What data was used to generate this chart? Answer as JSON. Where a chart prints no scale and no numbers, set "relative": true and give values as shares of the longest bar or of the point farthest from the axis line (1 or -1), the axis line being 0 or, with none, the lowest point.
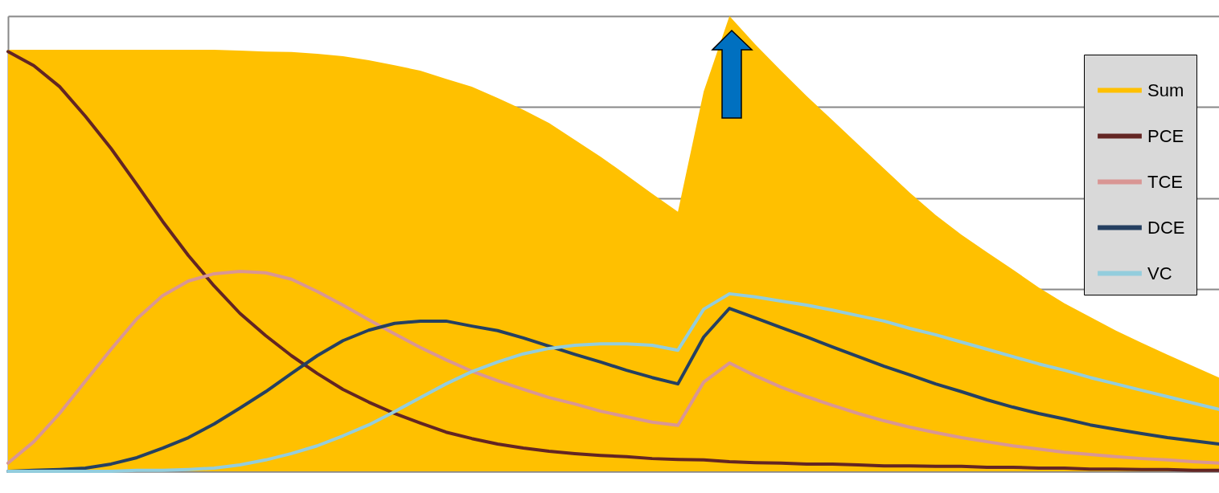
{
  "chart_data": {
    "type": "line",
    "relative": true,
    "grid": "y",
    "legend": "top right",
    "categories": [
      null,
      null,
      null,
      null,
      null,
      null,
      null,
      null,
      null,
      null,
      null,
      null,
      null,
      null,
      null,
      null,
      null,
      null,
      null,
      null,
      null,
      null,
      null,
      null,
      null,
      null,
      null,
      null,
      null,
      null,
      null,
      null,
      null,
      null,
      null,
      null,
      null,
      null,
      null,
      null,
      null,
      null,
      null,
      null,
      null,
      null,
      null,
      null
    ],
    "series": [
      {
        "name": "Sum",
        "type": "area",
        "color": "#ffc000",
        "values": [
          0.926,
          0.926,
          0.926,
          0.926,
          0.926,
          0.926,
          0.926,
          0.926,
          0.926,
          0.924,
          0.922,
          0.921,
          0.917,
          0.912,
          0.903,
          0.892,
          0.88,
          0.862,
          0.845,
          0.82,
          0.794,
          0.765,
          0.728,
          0.691,
          0.651,
          0.61,
          0.57,
          0.834,
          1.0,
          0.938,
          0.88,
          0.824,
          0.771,
          0.718,
          0.665,
          0.612,
          0.563,
          0.52,
          0.481,
          0.443,
          0.404,
          0.369,
          0.339,
          0.309,
          0.282,
          0.256,
          0.231,
          0.206
        ]
      },
      {
        "name": "PCE",
        "type": "line",
        "color": "#632523",
        "values": [
          0.922,
          0.891,
          0.845,
          0.78,
          0.709,
          0.63,
          0.549,
          0.474,
          0.407,
          0.347,
          0.298,
          0.254,
          0.215,
          0.18,
          0.152,
          0.127,
          0.106,
          0.086,
          0.072,
          0.06,
          0.051,
          0.044,
          0.039,
          0.035,
          0.032,
          0.028,
          0.026,
          0.025,
          0.021,
          0.019,
          0.018,
          0.016,
          0.016,
          0.014,
          0.012,
          0.012,
          0.011,
          0.011,
          0.009,
          0.009,
          0.007,
          0.007,
          0.005,
          0.005,
          0.004,
          0.004,
          0.002,
          0.002
        ]
      },
      {
        "name": "TCE",
        "type": "line",
        "color": "#d99694",
        "values": [
          0.018,
          0.065,
          0.127,
          0.198,
          0.268,
          0.335,
          0.386,
          0.418,
          0.434,
          0.439,
          0.436,
          0.422,
          0.395,
          0.365,
          0.333,
          0.302,
          0.272,
          0.245,
          0.22,
          0.199,
          0.18,
          0.162,
          0.148,
          0.132,
          0.12,
          0.108,
          0.101,
          0.196,
          0.238,
          0.21,
          0.185,
          0.164,
          0.145,
          0.127,
          0.111,
          0.097,
          0.085,
          0.074,
          0.065,
          0.056,
          0.049,
          0.042,
          0.037,
          0.032,
          0.028,
          0.025,
          0.021,
          0.018
        ]
      },
      {
        "name": "DCE",
        "type": "line",
        "color": "#254061",
        "values": [
          0,
          0.002,
          0.004,
          0.007,
          0.016,
          0.03,
          0.051,
          0.074,
          0.104,
          0.139,
          0.175,
          0.215,
          0.254,
          0.287,
          0.31,
          0.325,
          0.33,
          0.33,
          0.319,
          0.309,
          0.293,
          0.275,
          0.257,
          0.24,
          0.222,
          0.206,
          0.192,
          0.295,
          0.358,
          0.337,
          0.316,
          0.295,
          0.273,
          0.252,
          0.231,
          0.212,
          0.192,
          0.175,
          0.157,
          0.141,
          0.127,
          0.115,
          0.102,
          0.092,
          0.083,
          0.074,
          0.067,
          0.06
        ]
      },
      {
        "name": "VC",
        "type": "line",
        "color": "#93cddd",
        "values": [
          0,
          0,
          0,
          0,
          0,
          0.002,
          0.002,
          0.004,
          0.007,
          0.014,
          0.025,
          0.039,
          0.056,
          0.078,
          0.102,
          0.131,
          0.162,
          0.192,
          0.219,
          0.24,
          0.258,
          0.27,
          0.277,
          0.28,
          0.28,
          0.277,
          0.266,
          0.356,
          0.39,
          0.383,
          0.374,
          0.365,
          0.354,
          0.342,
          0.33,
          0.314,
          0.3,
          0.284,
          0.268,
          0.252,
          0.236,
          0.222,
          0.206,
          0.192,
          0.178,
          0.164,
          0.15,
          0.136
        ]
      }
    ]
  }
}
